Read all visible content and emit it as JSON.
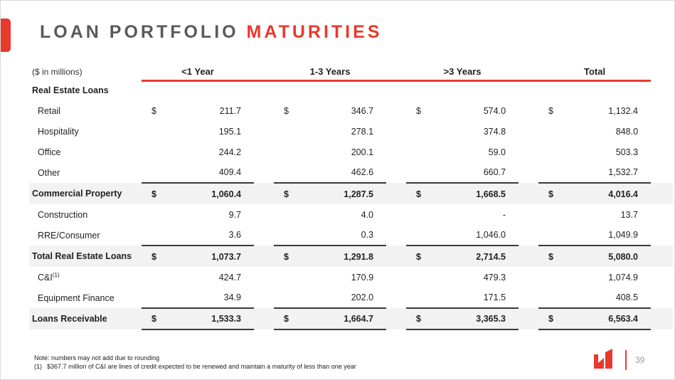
{
  "title": {
    "part1": "LOAN PORTFOLIO ",
    "part2": "MATURITIES"
  },
  "table": {
    "unit_label": "($ in millions)",
    "currency_symbol": "$",
    "columns": [
      "<1 Year",
      "1-3 Years",
      ">3 Years",
      "Total"
    ],
    "rows": [
      {
        "label": "Real Estate Loans",
        "type": "section",
        "dollar": false,
        "values": [
          "",
          "",
          "",
          ""
        ]
      },
      {
        "label": "Retail",
        "type": "item",
        "dollar": true,
        "values": [
          "211.7",
          "346.7",
          "574.0",
          "1,132.4"
        ]
      },
      {
        "label": "Hospitality",
        "type": "item",
        "dollar": false,
        "values": [
          "195.1",
          "278.1",
          "374.8",
          "848.0"
        ]
      },
      {
        "label": "Office",
        "type": "item",
        "dollar": false,
        "values": [
          "244.2",
          "200.1",
          "59.0",
          "503.3"
        ]
      },
      {
        "label": "Other",
        "type": "item",
        "dollar": false,
        "values": [
          "409.4",
          "462.6",
          "660.7",
          "1,532.7"
        ]
      },
      {
        "label": "Commercial Property",
        "type": "subtotal",
        "dollar": true,
        "values": [
          "1,060.4",
          "1,287.5",
          "1,668.5",
          "4,016.4"
        ]
      },
      {
        "label": "Construction",
        "type": "item",
        "dollar": false,
        "values": [
          "9.7",
          "4.0",
          "-",
          "13.7"
        ]
      },
      {
        "label": "RRE/Consumer",
        "type": "item",
        "dollar": false,
        "values": [
          "3.6",
          "0.3",
          "1,046.0",
          "1,049.9"
        ]
      },
      {
        "label": "Total Real Estate Loans",
        "type": "subtotal",
        "dollar": true,
        "values": [
          "1,073.7",
          "1,291.8",
          "2,714.5",
          "5,080.0"
        ]
      },
      {
        "label": "C&I",
        "sup": "(1)",
        "type": "item",
        "dollar": false,
        "values": [
          "424.7",
          "170.9",
          "479.3",
          "1,074.9"
        ]
      },
      {
        "label": "Equipment Finance",
        "type": "item",
        "dollar": false,
        "values": [
          "34.9",
          "202.0",
          "171.5",
          "408.5"
        ]
      },
      {
        "label": "Loans Receivable",
        "type": "grandtotal",
        "dollar": true,
        "values": [
          "1,533.3",
          "1,664.7",
          "3,365.3",
          "6,563.4"
        ]
      }
    ]
  },
  "footer": {
    "note1": "Note: numbers may not add due to rounding",
    "note2_marker": "(1)",
    "note2_text": "$367.7 million of C&I are lines of credit expected to be renewed and maintain a maturity of less than one year",
    "page_number": "39"
  },
  "icons": {
    "logo": "company-logo-icon"
  },
  "colors": {
    "accent_red": "#E8392D",
    "title_gray": "#58595B",
    "text_ink": "#231F20",
    "row_shade": "#F2F2F2",
    "rule_dark": "#3A3A3A",
    "page_number_gray": "#9B9B9B"
  }
}
